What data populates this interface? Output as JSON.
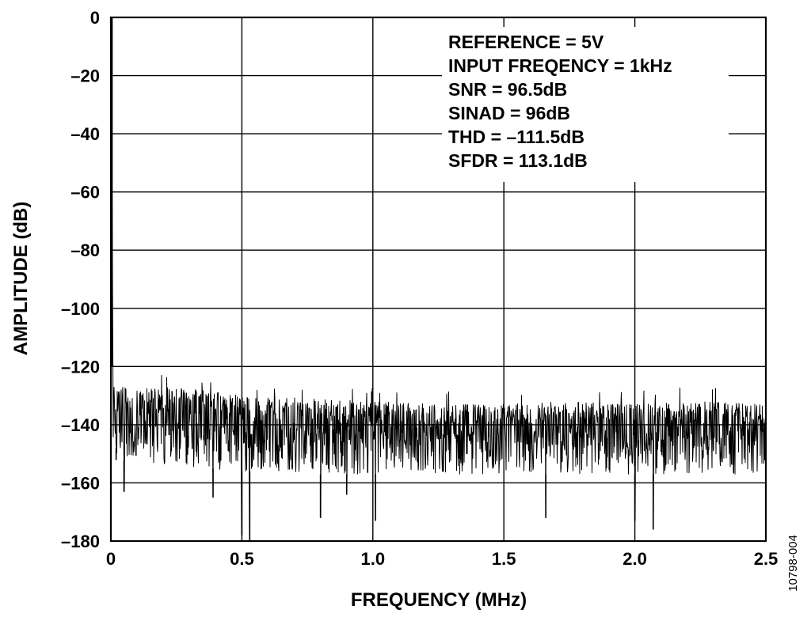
{
  "chart_data": {
    "type": "line",
    "title": "",
    "xlabel": "FREQUENCY (MHz)",
    "ylabel": "AMPLITUDE (dB)",
    "xlim": [
      0,
      2.5
    ],
    "ylim": [
      -180,
      0
    ],
    "x_ticks": [
      "0",
      "0.5",
      "1.0",
      "1.5",
      "2.0",
      "2.5"
    ],
    "y_ticks": [
      "0",
      "–20",
      "–40",
      "–60",
      "–80",
      "–100",
      "–120",
      "–140",
      "–160",
      "–180"
    ],
    "grid": true,
    "annotations": [
      "REFERENCE = 5V",
      "INPUT FREQENCY = 1kHz",
      "SNR = 96.5dB",
      "SINAD = 96dB",
      "THD = –111.5dB",
      "SFDR = 113.1dB"
    ],
    "fundamental": {
      "x": 0.001,
      "y": 0
    },
    "noise_floor": {
      "x": [
        0,
        0.25,
        0.5,
        0.75,
        1.0,
        1.25,
        1.5,
        1.75,
        2.0,
        2.25,
        2.5
      ],
      "upper": [
        -127,
        -127,
        -130,
        -131,
        -132,
        -133,
        -133,
        -132,
        -133,
        -132,
        -133
      ],
      "median": [
        -138,
        -139,
        -140,
        -141,
        -142,
        -142,
        -142,
        -142,
        -142,
        -142,
        -142
      ],
      "lower": [
        -152,
        -154,
        -156,
        -157,
        -157,
        -157,
        -157,
        -157,
        -157,
        -157,
        -157
      ]
    },
    "spurs": [
      {
        "x": 0.02,
        "y": -148
      },
      {
        "x": 0.05,
        "y": -163
      },
      {
        "x": 0.39,
        "y": -165
      },
      {
        "x": 0.5,
        "y": -178
      },
      {
        "x": 0.53,
        "y": -180
      },
      {
        "x": 0.8,
        "y": -172
      },
      {
        "x": 0.9,
        "y": -164
      },
      {
        "x": 1.01,
        "y": -173
      },
      {
        "x": 1.66,
        "y": -172
      },
      {
        "x": 2.0,
        "y": -173
      },
      {
        "x": 2.07,
        "y": -176
      },
      {
        "x": 2.5,
        "y": -165
      }
    ]
  },
  "figure_id": "10798-004"
}
